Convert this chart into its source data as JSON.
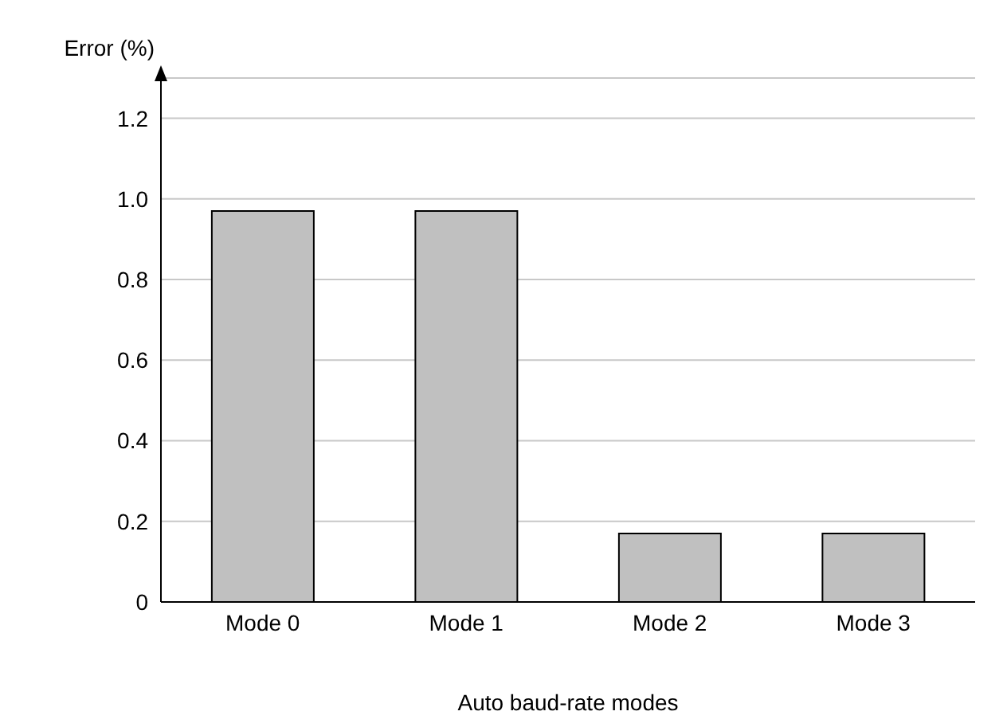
{
  "chart_data": {
    "type": "bar",
    "ylabel": "Error (%)",
    "xlabel": "Auto baud-rate modes",
    "categories": [
      "Mode 0",
      "Mode 1",
      "Mode 2",
      "Mode 3"
    ],
    "values": [
      0.97,
      0.97,
      0.17,
      0.17
    ],
    "color": "#c0c0c0",
    "ylim": [
      0,
      1.3
    ],
    "yticks": [
      0,
      0.2,
      0.4,
      0.6,
      0.8,
      {
        "value": 1,
        "label": "1.0"
      },
      1.2
    ],
    "grid": "y"
  }
}
